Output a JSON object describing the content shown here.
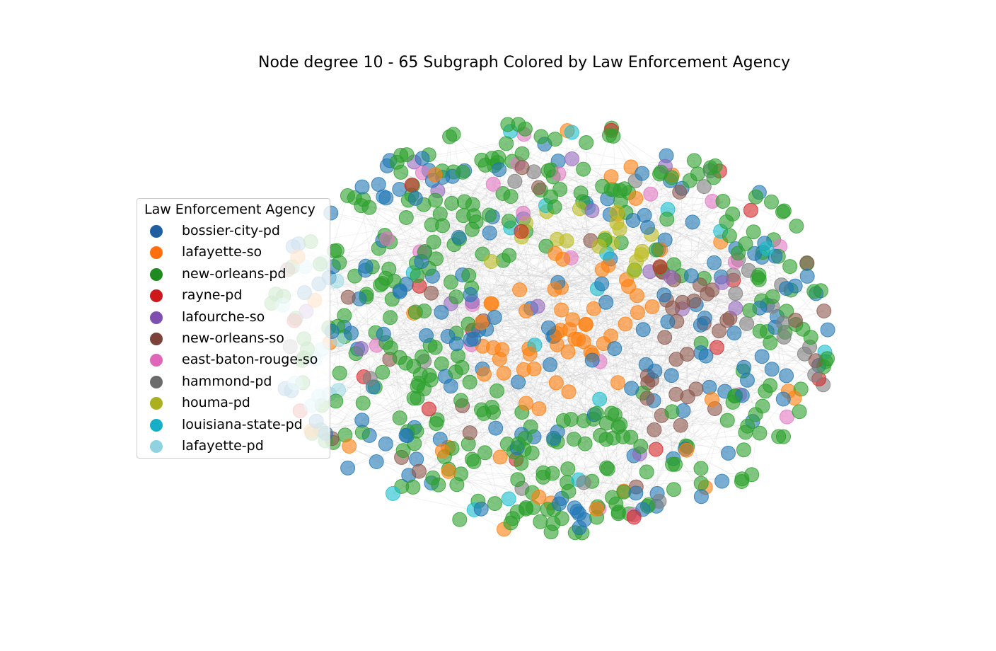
{
  "title": "Node degree 10 - 65 Subgraph Colored by Law Enforcement Agency",
  "legend": {
    "title": "Law Enforcement Agency",
    "placement": "center-left",
    "items": [
      {
        "label": "bossier-city-pd",
        "color": "#1f5fa0"
      },
      {
        "label": "lafayette-so",
        "color": "#ff6f0e"
      },
      {
        "label": "new-orleans-pd",
        "color": "#1f8a1f"
      },
      {
        "label": "rayne-pd",
        "color": "#cc1a1c"
      },
      {
        "label": "lafourche-so",
        "color": "#7f4fb0"
      },
      {
        "label": "new-orleans-so",
        "color": "#7a4238"
      },
      {
        "label": "east-baton-rouge-so",
        "color": "#e066b8"
      },
      {
        "label": "hammond-pd",
        "color": "#6b6b6b"
      },
      {
        "label": "houma-pd",
        "color": "#aab020"
      },
      {
        "label": "louisiana-state-pd",
        "color": "#17aec8"
      },
      {
        "label": "lafayette-pd",
        "color": "#8fd2e0"
      }
    ]
  },
  "graph": {
    "node_opacity": 0.6,
    "edge_color": "#cfcfcf",
    "agency_colors": {
      "bossier-city-pd": "#1f77b4",
      "lafayette-so": "#ff7f0e",
      "new-orleans-pd": "#2ca02c",
      "rayne-pd": "#d62728",
      "lafourche-so": "#9467bd",
      "new-orleans-so": "#8c564b",
      "east-baton-rouge-so": "#e377c2",
      "hammond-pd": "#7f7f7f",
      "houma-pd": "#bcbd22",
      "louisiana-state-pd": "#17becf",
      "lafayette-pd": "#9edae5"
    }
  }
}
